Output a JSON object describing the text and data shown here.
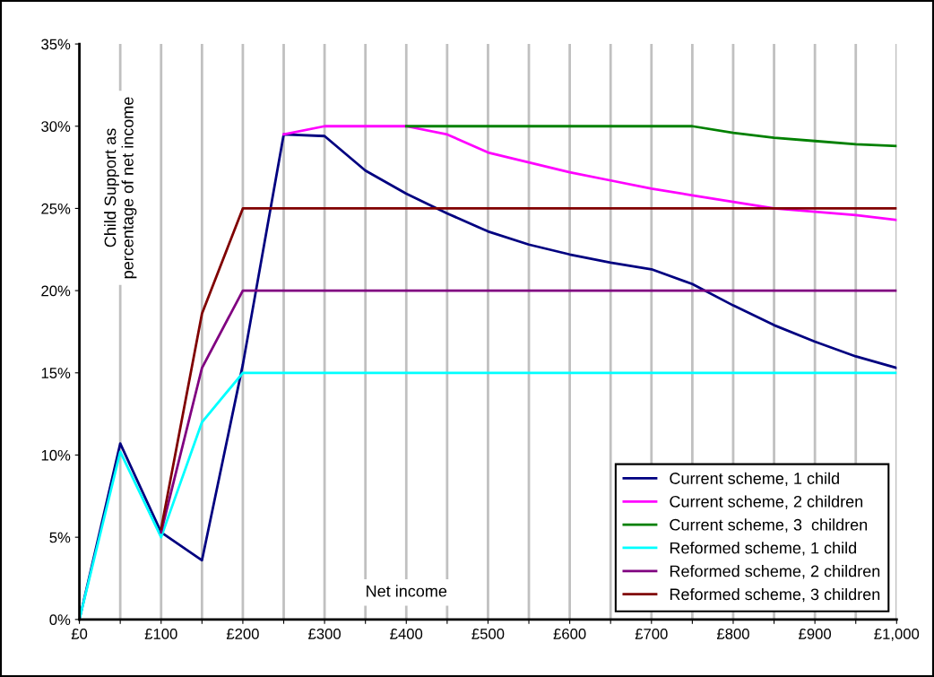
{
  "chart_data": {
    "type": "line",
    "xlabel": "Net income",
    "ylabel": "Child Support as\npercentage of net income",
    "x": [
      0,
      50,
      100,
      150,
      200,
      250,
      300,
      350,
      400,
      450,
      500,
      550,
      600,
      650,
      700,
      750,
      800,
      850,
      900,
      950,
      1000
    ],
    "series": [
      {
        "name": "Current scheme, 1 child",
        "color": "#000080",
        "values": [
          0,
          10.7,
          5.3,
          3.6,
          15.5,
          29.5,
          29.4,
          27.3,
          25.9,
          24.7,
          23.6,
          22.8,
          22.2,
          21.7,
          21.3,
          20.4,
          19.1,
          17.9,
          16.9,
          16.0,
          15.3
        ]
      },
      {
        "name": "Current scheme, 2 children",
        "color": "#ff00ff",
        "values": [
          null,
          null,
          null,
          null,
          null,
          29.5,
          30,
          30,
          30,
          29.5,
          28.4,
          27.8,
          27.2,
          26.7,
          26.2,
          25.8,
          25.4,
          25.0,
          24.8,
          24.6,
          24.3
        ]
      },
      {
        "name": "Current scheme, 3  children",
        "color": "#008000",
        "values": [
          null,
          null,
          null,
          null,
          null,
          null,
          null,
          null,
          30,
          30,
          30,
          30,
          30,
          30,
          30,
          30,
          29.6,
          29.3,
          29.1,
          28.9,
          28.8
        ]
      },
      {
        "name": "Reformed scheme, 1 child",
        "color": "#00ffff",
        "values": [
          0,
          10.2,
          5.0,
          12.0,
          15,
          15,
          15,
          15,
          15,
          15,
          15,
          15,
          15,
          15,
          15,
          15,
          15,
          15,
          15,
          15,
          15
        ]
      },
      {
        "name": "Reformed scheme, 2 children",
        "color": "#800080",
        "values": [
          null,
          null,
          5.3,
          15.3,
          20,
          20,
          20,
          20,
          20,
          20,
          20,
          20,
          20,
          20,
          20,
          20,
          20,
          20,
          20,
          20,
          20
        ]
      },
      {
        "name": "Reformed scheme, 3 children",
        "color": "#800000",
        "values": [
          null,
          null,
          5.5,
          18.6,
          25,
          25,
          25,
          25,
          25,
          25,
          25,
          25,
          25,
          25,
          25,
          25,
          25,
          25,
          25,
          25,
          25
        ]
      }
    ],
    "xlim": [
      0,
      1000
    ],
    "xticks": [
      {
        "value": 0,
        "label": "£0"
      },
      {
        "value": 50,
        "label": null
      },
      {
        "value": 100,
        "label": "£100"
      },
      {
        "value": 150,
        "label": null
      },
      {
        "value": 200,
        "label": "£200"
      },
      {
        "value": 250,
        "label": null
      },
      {
        "value": 300,
        "label": "£300"
      },
      {
        "value": 350,
        "label": null
      },
      {
        "value": 400,
        "label": "£400"
      },
      {
        "value": 450,
        "label": null
      },
      {
        "value": 500,
        "label": "£500"
      },
      {
        "value": 550,
        "label": null
      },
      {
        "value": 600,
        "label": "£600"
      },
      {
        "value": 650,
        "label": null
      },
      {
        "value": 700,
        "label": "£700"
      },
      {
        "value": 750,
        "label": null
      },
      {
        "value": 800,
        "label": "£800"
      },
      {
        "value": 850,
        "label": null
      },
      {
        "value": 900,
        "label": "£900"
      },
      {
        "value": 950,
        "label": null
      },
      {
        "value": 1000,
        "label": "£1,000"
      }
    ],
    "ylim": [
      0,
      35
    ],
    "yticks": [
      {
        "value": 0,
        "label": "0%"
      },
      {
        "value": 5,
        "label": "5%"
      },
      {
        "value": 10,
        "label": "10%"
      },
      {
        "value": 15,
        "label": "15%"
      },
      {
        "value": 20,
        "label": "20%"
      },
      {
        "value": 25,
        "label": "25%"
      },
      {
        "value": 30,
        "label": "30%"
      },
      {
        "value": 35,
        "label": "35%"
      }
    ],
    "grid": "x",
    "legend": "bottom right",
    "marker": "none",
    "line_style": "solid"
  }
}
